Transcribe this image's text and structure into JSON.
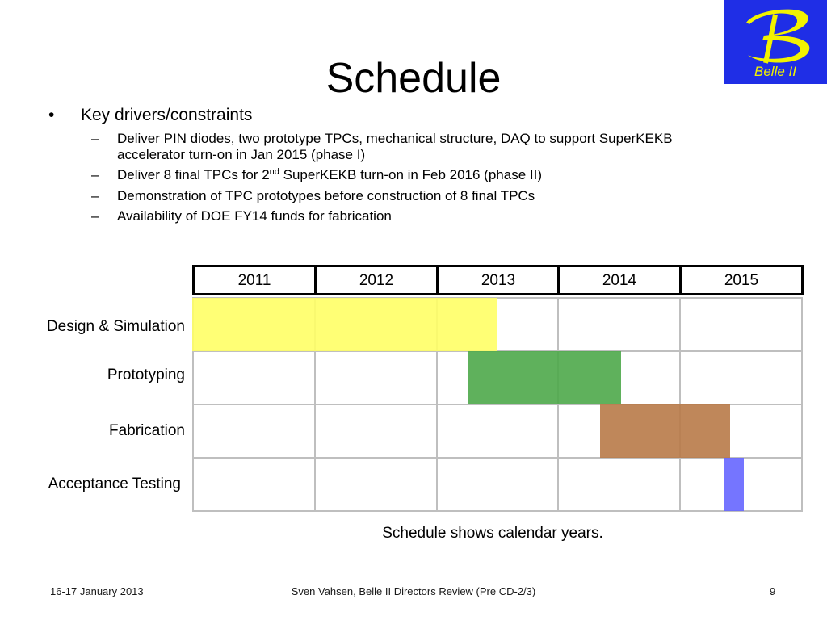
{
  "slide": {
    "title": "Schedule",
    "logo_text": "Belle II",
    "bullet_marker": "•",
    "dash_marker": "–",
    "key_drivers": "Key drivers/constraints",
    "sub_items": {
      "item1_line1": "Deliver PIN diodes, two prototype TPCs, mechanical structure, DAQ to support SuperKEKB",
      "item1_line2": "accelerator turn-on in Jan 2015 (phase I)",
      "item2_before": "Deliver 8 final TPCs for 2",
      "item2_sup": "nd",
      "item2_after": " SuperKEKB turn-on in Feb 2016 (phase II)",
      "item3": "Demonstration of TPC prototypes before construction of  8 final TPCs",
      "item4": "Availability of DOE FY14 funds for fabrication"
    }
  },
  "gantt": {
    "years": [
      "2011",
      "2012",
      "2013",
      "2014",
      "2015"
    ],
    "tasks": [
      {
        "label": "Design & Simulation",
        "start": 2011.0,
        "end": 2013.5,
        "color": "#ffff66"
      },
      {
        "label": "Prototyping",
        "start": 2013.27,
        "end": 2014.52,
        "color": "#4ea84a"
      },
      {
        "label": "Fabrication",
        "start": 2014.35,
        "end": 2015.42,
        "color": "#b87a48"
      },
      {
        "label": "Acceptance Testing",
        "start": 2015.37,
        "end": 2015.53,
        "color": "#6666ff"
      }
    ],
    "caption": "Schedule shows calendar years."
  },
  "footer": {
    "date": "16-17 January 2013",
    "presenter": "Sven Vahsen, Belle II Directors Review (Pre CD-2/3)",
    "page_number": "9"
  }
}
